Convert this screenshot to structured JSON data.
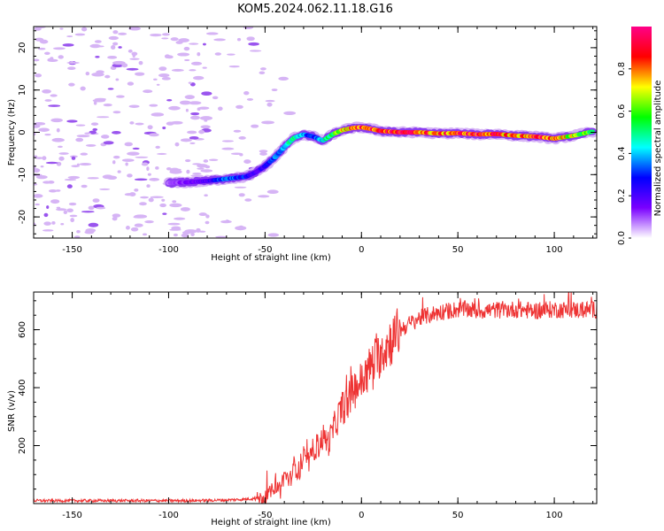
{
  "title": "KOM5.2024.062.11.18.G16",
  "chart_data": [
    {
      "type": "heatmap",
      "xlabel": "Height of straight line (km)",
      "ylabel": "Frequency (Hz)",
      "xlim": [
        -170,
        122
      ],
      "ylim": [
        -25,
        25
      ],
      "x_ticks": [
        "-150",
        "-100",
        "-50",
        "0",
        "50",
        "100"
      ],
      "y_ticks": [
        "20",
        "10",
        "0",
        "-10",
        "-20"
      ],
      "colorbar": {
        "label": "Normalized spectral amplitude",
        "range": [
          0,
          1
        ],
        "ticks": [
          "0.0",
          "0.2",
          "0.4",
          "0.6",
          "0.8"
        ],
        "colors": [
          "#ffffff",
          "#7a00ff",
          "#0000ff",
          "#00ffff",
          "#00ff00",
          "#ffff00",
          "#ff0000",
          "#ff0088"
        ]
      },
      "ridge": {
        "x": [
          -100,
          -90,
          -80,
          -70,
          -60,
          -55,
          -50,
          -45,
          -40,
          -35,
          -30,
          -25,
          -20,
          -15,
          -10,
          -5,
          0,
          5,
          10,
          20,
          30,
          40,
          50,
          60,
          70,
          80,
          90,
          100,
          110,
          120
        ],
        "y": [
          -12,
          -11.8,
          -11.5,
          -11,
          -10.5,
          -9.5,
          -8,
          -6,
          -3.5,
          -1.3,
          -0.5,
          -1,
          -2,
          -0.5,
          0.5,
          1,
          1.2,
          0.8,
          0.3,
          0,
          0,
          -0.3,
          -0.2,
          -0.5,
          -0.4,
          -0.8,
          -1,
          -1.5,
          -0.8,
          0.2
        ],
        "amplitude": [
          0.1,
          0.15,
          0.2,
          0.4,
          0.3,
          0.2,
          0.25,
          0.35,
          0.45,
          0.5,
          0.4,
          0.3,
          0.45,
          0.6,
          0.75,
          0.85,
          0.92,
          0.96,
          0.95,
          0.98,
          0.9,
          0.85,
          0.9,
          0.95,
          0.9,
          0.85,
          0.9,
          0.88,
          0.7,
          0.6
        ]
      }
    },
    {
      "type": "line",
      "xlabel": "Height of straight line (km)",
      "ylabel": "SNR (v/v)",
      "xlim": [
        -170,
        122
      ],
      "ylim": [
        0,
        730
      ],
      "x_ticks": [
        "-150",
        "-100",
        "-50",
        "0",
        "50",
        "100"
      ],
      "y_ticks": [
        "200",
        "400",
        "600"
      ],
      "color": "#ee3333",
      "series": [
        {
          "x": [
            -170,
            -150,
            -130,
            -110,
            -90,
            -70,
            -60,
            -55,
            -50,
            -47,
            -45,
            -42,
            -40,
            -37,
            -35,
            -32,
            -30,
            -27,
            -25,
            -22,
            -20,
            -17,
            -15,
            -12,
            -10,
            -7,
            -5,
            -2,
            0,
            3,
            5,
            8,
            10,
            13,
            15,
            18,
            20,
            25,
            30,
            35,
            40,
            45,
            50,
            55,
            60,
            70,
            80,
            90,
            100,
            110,
            122
          ],
          "y": [
            10,
            10,
            10,
            10,
            10,
            12,
            15,
            18,
            20,
            40,
            60,
            55,
            100,
            80,
            130,
            110,
            160,
            140,
            190,
            200,
            230,
            210,
            250,
            300,
            330,
            350,
            380,
            410,
            420,
            450,
            480,
            500,
            520,
            545,
            560,
            580,
            600,
            620,
            640,
            650,
            660,
            665,
            670,
            670,
            665,
            668,
            670,
            665,
            670,
            668,
            670
          ]
        }
      ]
    }
  ]
}
